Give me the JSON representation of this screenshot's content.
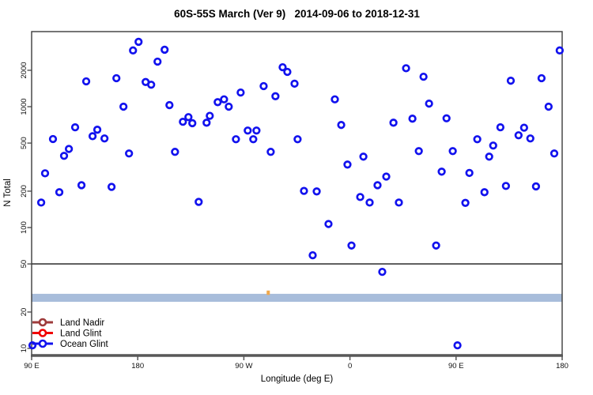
{
  "title": "60S-55S March (Ver 9)   2014-09-06 to 2018-12-31",
  "chart_data": {
    "type": "scatter",
    "title": "60S-55S March (Ver 9)   2014-09-06 to 2018-12-31",
    "xlabel": "Longitude (deg E)",
    "ylabel": "N Total",
    "y_scale": "log",
    "ylim": [
      8.87,
      4180
    ],
    "xlim": [
      0,
      450
    ],
    "x_axis": {
      "ticks": [
        0,
        90,
        180,
        270,
        360,
        450
      ],
      "tick_labels": [
        "90 E",
        "180",
        "90 W",
        "0",
        "90 E",
        "180"
      ]
    },
    "y_axis": {
      "ticks": [
        10,
        20,
        50,
        100,
        200,
        500,
        1000,
        2000
      ],
      "tick_labels": [
        "10",
        "20",
        "50",
        "100",
        "200",
        "500",
        "1000",
        "2000"
      ]
    },
    "grid": "off",
    "reference_line_n": 50,
    "band": {
      "n_low": 24.3,
      "n_high": 28.3,
      "color": "#a8bddb"
    },
    "band_marker": {
      "deg": 200.7,
      "n": 29,
      "color": "#f0a84c"
    },
    "legend": {
      "position": "bottom-left",
      "items": [
        {
          "label": "Land Nadir",
          "color": "#9e3b3b"
        },
        {
          "label": "Land Glint",
          "color": "#f00000"
        },
        {
          "label": "Ocean Glint",
          "color": "#1212ee"
        }
      ]
    },
    "series": [
      {
        "name": "Land Nadir",
        "color": "#9e3b3b",
        "points": []
      },
      {
        "name": "Land Glint",
        "color": "#f00000",
        "points": []
      },
      {
        "name": "Ocean Glint",
        "color": "#1212ee",
        "points": [
          [
            90.7,
            3440
          ],
          [
            86.0,
            2920
          ],
          [
            112.8,
            2960
          ],
          [
            106.8,
            2360
          ],
          [
            46.3,
            1620
          ],
          [
            71.9,
            1720
          ],
          [
            96.7,
            1600
          ],
          [
            101.4,
            1520
          ],
          [
            77.9,
            1000
          ],
          [
            116.9,
            1030
          ],
          [
            128.3,
            750
          ],
          [
            133.0,
            820
          ],
          [
            136.3,
            730
          ],
          [
            151.1,
            840
          ],
          [
            148.4,
            737
          ],
          [
            36.9,
            675
          ],
          [
            18.1,
            540
          ],
          [
            51.7,
            570
          ],
          [
            55.7,
            645
          ],
          [
            61.8,
            546
          ],
          [
            31.6,
            447
          ],
          [
            27.5,
            392
          ],
          [
            82.6,
            410
          ],
          [
            121.6,
            423
          ],
          [
            11.4,
            281
          ],
          [
            42.3,
            224
          ],
          [
            67.8,
            217
          ],
          [
            23.5,
            196
          ],
          [
            8.1,
            161
          ],
          [
            141.7,
            163
          ],
          [
            212.9,
            2120
          ],
          [
            216.9,
            1940
          ],
          [
            223.0,
            1550
          ],
          [
            196.8,
            1480
          ],
          [
            177.3,
            1310
          ],
          [
            206.8,
            1220
          ],
          [
            157.8,
            1090
          ],
          [
            163.2,
            1150
          ],
          [
            167.2,
            1000
          ],
          [
            257.2,
            1150
          ],
          [
            262.6,
            706
          ],
          [
            183.3,
            635
          ],
          [
            190.7,
            635
          ],
          [
            173.3,
            538
          ],
          [
            188.0,
            538
          ],
          [
            225.6,
            538
          ],
          [
            202.8,
            423
          ],
          [
            267.9,
            332
          ],
          [
            281.4,
            386
          ],
          [
            300.8,
            264
          ],
          [
            293.4,
            224
          ],
          [
            231.0,
            201
          ],
          [
            241.8,
            199
          ],
          [
            278.7,
            179
          ],
          [
            286.7,
            161
          ],
          [
            251.8,
            107
          ],
          [
            271.3,
            71
          ],
          [
            238.4,
            59
          ],
          [
            297.4,
            43
          ],
          [
            447.9,
            2920
          ],
          [
            317.6,
            2080
          ],
          [
            332.4,
            1770
          ],
          [
            406.4,
            1640
          ],
          [
            432.5,
            1720
          ],
          [
            337.1,
            1060
          ],
          [
            438.5,
            1000
          ],
          [
            323.0,
            796
          ],
          [
            306.9,
            737
          ],
          [
            351.9,
            801
          ],
          [
            397.6,
            675
          ],
          [
            417.7,
            670
          ],
          [
            413.0,
            580
          ],
          [
            423.0,
            546
          ],
          [
            378.0,
            538
          ],
          [
            391.5,
            477
          ],
          [
            388.1,
            386
          ],
          [
            328.4,
            429
          ],
          [
            357.2,
            429
          ],
          [
            443.3,
            410
          ],
          [
            347.8,
            290
          ],
          [
            371.3,
            283
          ],
          [
            402.3,
            221
          ],
          [
            427.8,
            219
          ],
          [
            384.1,
            196
          ],
          [
            311.5,
            161
          ],
          [
            367.9,
            160
          ],
          [
            343.1,
            71
          ],
          [
            361.2,
            10.6
          ],
          [
            0.7,
            10.6
          ]
        ]
      }
    ]
  }
}
